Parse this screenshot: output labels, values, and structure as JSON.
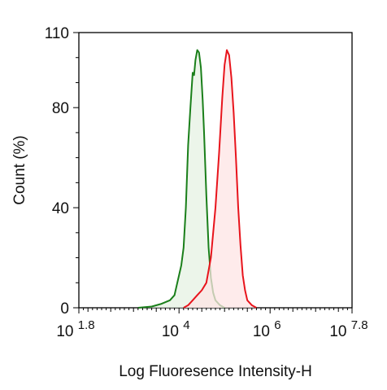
{
  "chart_data": {
    "type": "area",
    "title": "",
    "xlabel": "Log Fluoresence Intensity-H",
    "ylabel": "Count  (%)",
    "x_scale": "log10",
    "xlim_log10": [
      1.8,
      7.8
    ],
    "ylim": [
      0,
      110
    ],
    "grid": false,
    "x_ticks": [
      {
        "base": "10",
        "exp": "1.8",
        "value_log10": 1.8
      },
      {
        "base": "10",
        "exp": "4",
        "value_log10": 4
      },
      {
        "base": "10",
        "exp": "6",
        "value_log10": 6
      },
      {
        "base": "10",
        "exp": "7.8",
        "value_log10": 7.8
      }
    ],
    "y_ticks": [
      {
        "label": "0",
        "value": 0
      },
      {
        "label": "40",
        "value": 40
      },
      {
        "label": "80",
        "value": 80
      },
      {
        "label": "110",
        "value": 110
      }
    ],
    "series": [
      {
        "color": "#1a7f1a",
        "fill": "#e6f2e3",
        "points_log10x": [
          [
            3.1,
            0
          ],
          [
            3.4,
            0.5
          ],
          [
            3.6,
            1.5
          ],
          [
            3.8,
            3
          ],
          [
            3.9,
            5
          ],
          [
            3.95,
            9
          ],
          [
            4.0,
            13
          ],
          [
            4.05,
            17
          ],
          [
            4.1,
            24
          ],
          [
            4.15,
            40
          ],
          [
            4.2,
            65
          ],
          [
            4.25,
            80
          ],
          [
            4.3,
            94
          ],
          [
            4.33,
            93
          ],
          [
            4.36,
            99
          ],
          [
            4.4,
            103
          ],
          [
            4.44,
            102
          ],
          [
            4.48,
            96
          ],
          [
            4.52,
            83
          ],
          [
            4.55,
            70
          ],
          [
            4.6,
            45
          ],
          [
            4.65,
            24
          ],
          [
            4.7,
            12
          ],
          [
            4.75,
            6
          ],
          [
            4.8,
            3
          ],
          [
            4.9,
            1
          ],
          [
            5.0,
            0
          ]
        ]
      },
      {
        "color": "#e8141c",
        "fill": "#fde4e4",
        "points_log10x": [
          [
            4.1,
            0
          ],
          [
            4.2,
            1
          ],
          [
            4.3,
            3
          ],
          [
            4.4,
            5
          ],
          [
            4.5,
            7
          ],
          [
            4.6,
            10
          ],
          [
            4.7,
            20
          ],
          [
            4.8,
            40
          ],
          [
            4.88,
            62
          ],
          [
            4.95,
            84
          ],
          [
            5.0,
            97
          ],
          [
            5.05,
            103
          ],
          [
            5.1,
            101
          ],
          [
            5.15,
            92
          ],
          [
            5.2,
            78
          ],
          [
            5.25,
            60
          ],
          [
            5.3,
            40
          ],
          [
            5.35,
            25
          ],
          [
            5.4,
            13
          ],
          [
            5.45,
            7
          ],
          [
            5.5,
            3
          ],
          [
            5.6,
            1
          ],
          [
            5.7,
            0
          ]
        ]
      }
    ]
  }
}
